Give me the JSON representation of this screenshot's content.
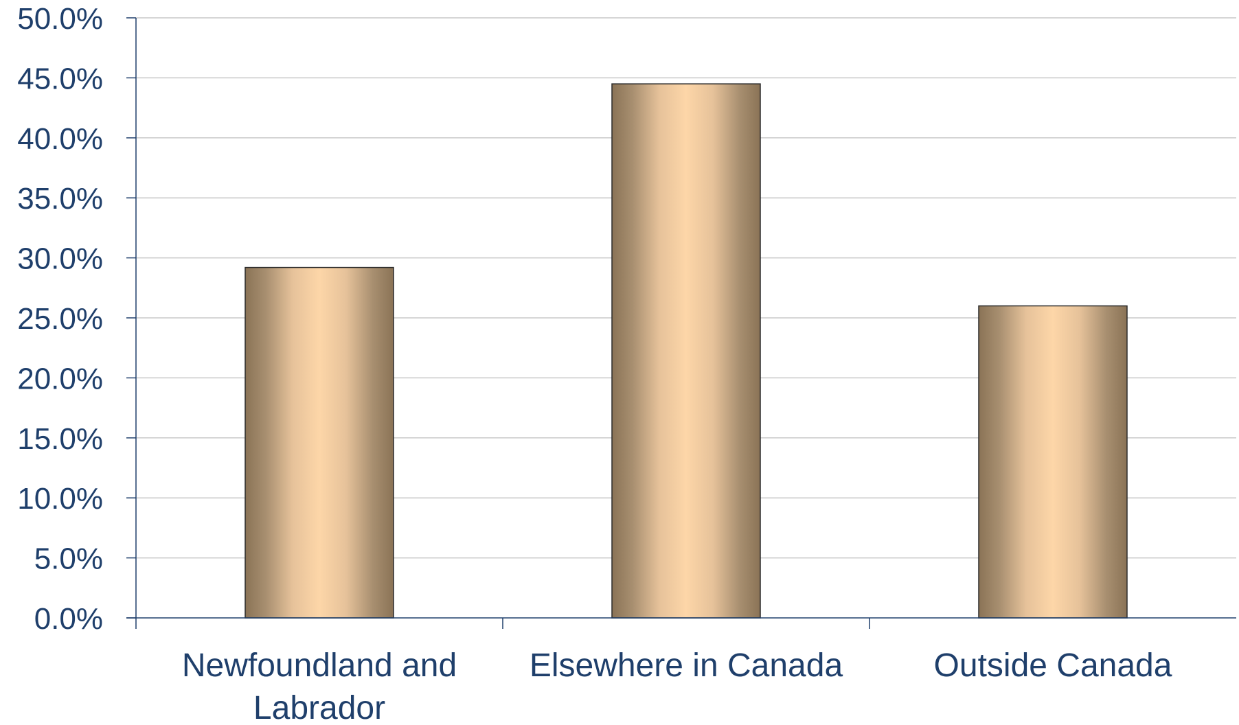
{
  "chart_data": {
    "type": "bar",
    "title": "",
    "xlabel": "",
    "ylabel": "",
    "categories": [
      [
        "Newfoundland and",
        "Labrador"
      ],
      [
        "Elsewhere in Canada"
      ],
      [
        "Outside Canada"
      ]
    ],
    "values": [
      29.2,
      44.5,
      26.0
    ],
    "ylim": [
      0,
      50
    ],
    "yticks": [
      "0.0%",
      "5.0%",
      "10.0%",
      "15.0%",
      "20.0%",
      "25.0%",
      "30.0%",
      "35.0%",
      "40.0%",
      "45.0%",
      "50.0%"
    ],
    "grid": true,
    "legend": "none",
    "colors": {
      "bar_edge": "#8a7356",
      "bar_center": "#fdd6a8",
      "axis": "#1f3f6b",
      "grid": "#c8c8c8",
      "text": "#1f3f6b"
    }
  }
}
